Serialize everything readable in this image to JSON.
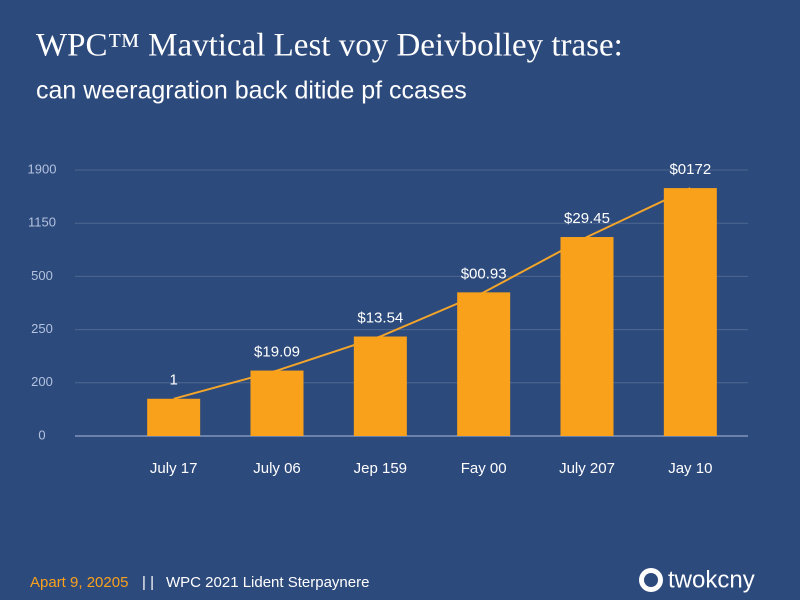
{
  "chart_data": {
    "type": "bar",
    "title": "WPC™ Mavtical Lest voy Deivbolley trase:",
    "subtitle": "can weeragration back ditide pf ccases",
    "categories": [
      "July 17",
      "July 06",
      "Jep 159",
      "Fay 00",
      "July 207",
      "Jay 10"
    ],
    "values": [
      0.7,
      1.23,
      1.87,
      2.7,
      3.74,
      4.66
    ],
    "color": "#f9a11b",
    "line": true,
    "line_color": "#f2a52a",
    "annotations": [
      "1",
      "$19.09",
      "$13.54",
      "$00.93",
      "$29.45",
      "$0172"
    ],
    "ylim": [
      0,
      5
    ],
    "yticks": [
      {
        "value": 0,
        "label": "0"
      },
      {
        "value": 1,
        "label": "200"
      },
      {
        "value": 2,
        "label": "250"
      },
      {
        "value": 3,
        "label": "500"
      },
      {
        "value": 4,
        "label": "1150"
      },
      {
        "value": 5,
        "label": "1900"
      }
    ],
    "grid": true
  },
  "footer": {
    "date": "Apart 9, 20205",
    "separator": "|  |",
    "text": "WPC 2021 Lident Sterpaynere",
    "logo": "twokcny"
  }
}
